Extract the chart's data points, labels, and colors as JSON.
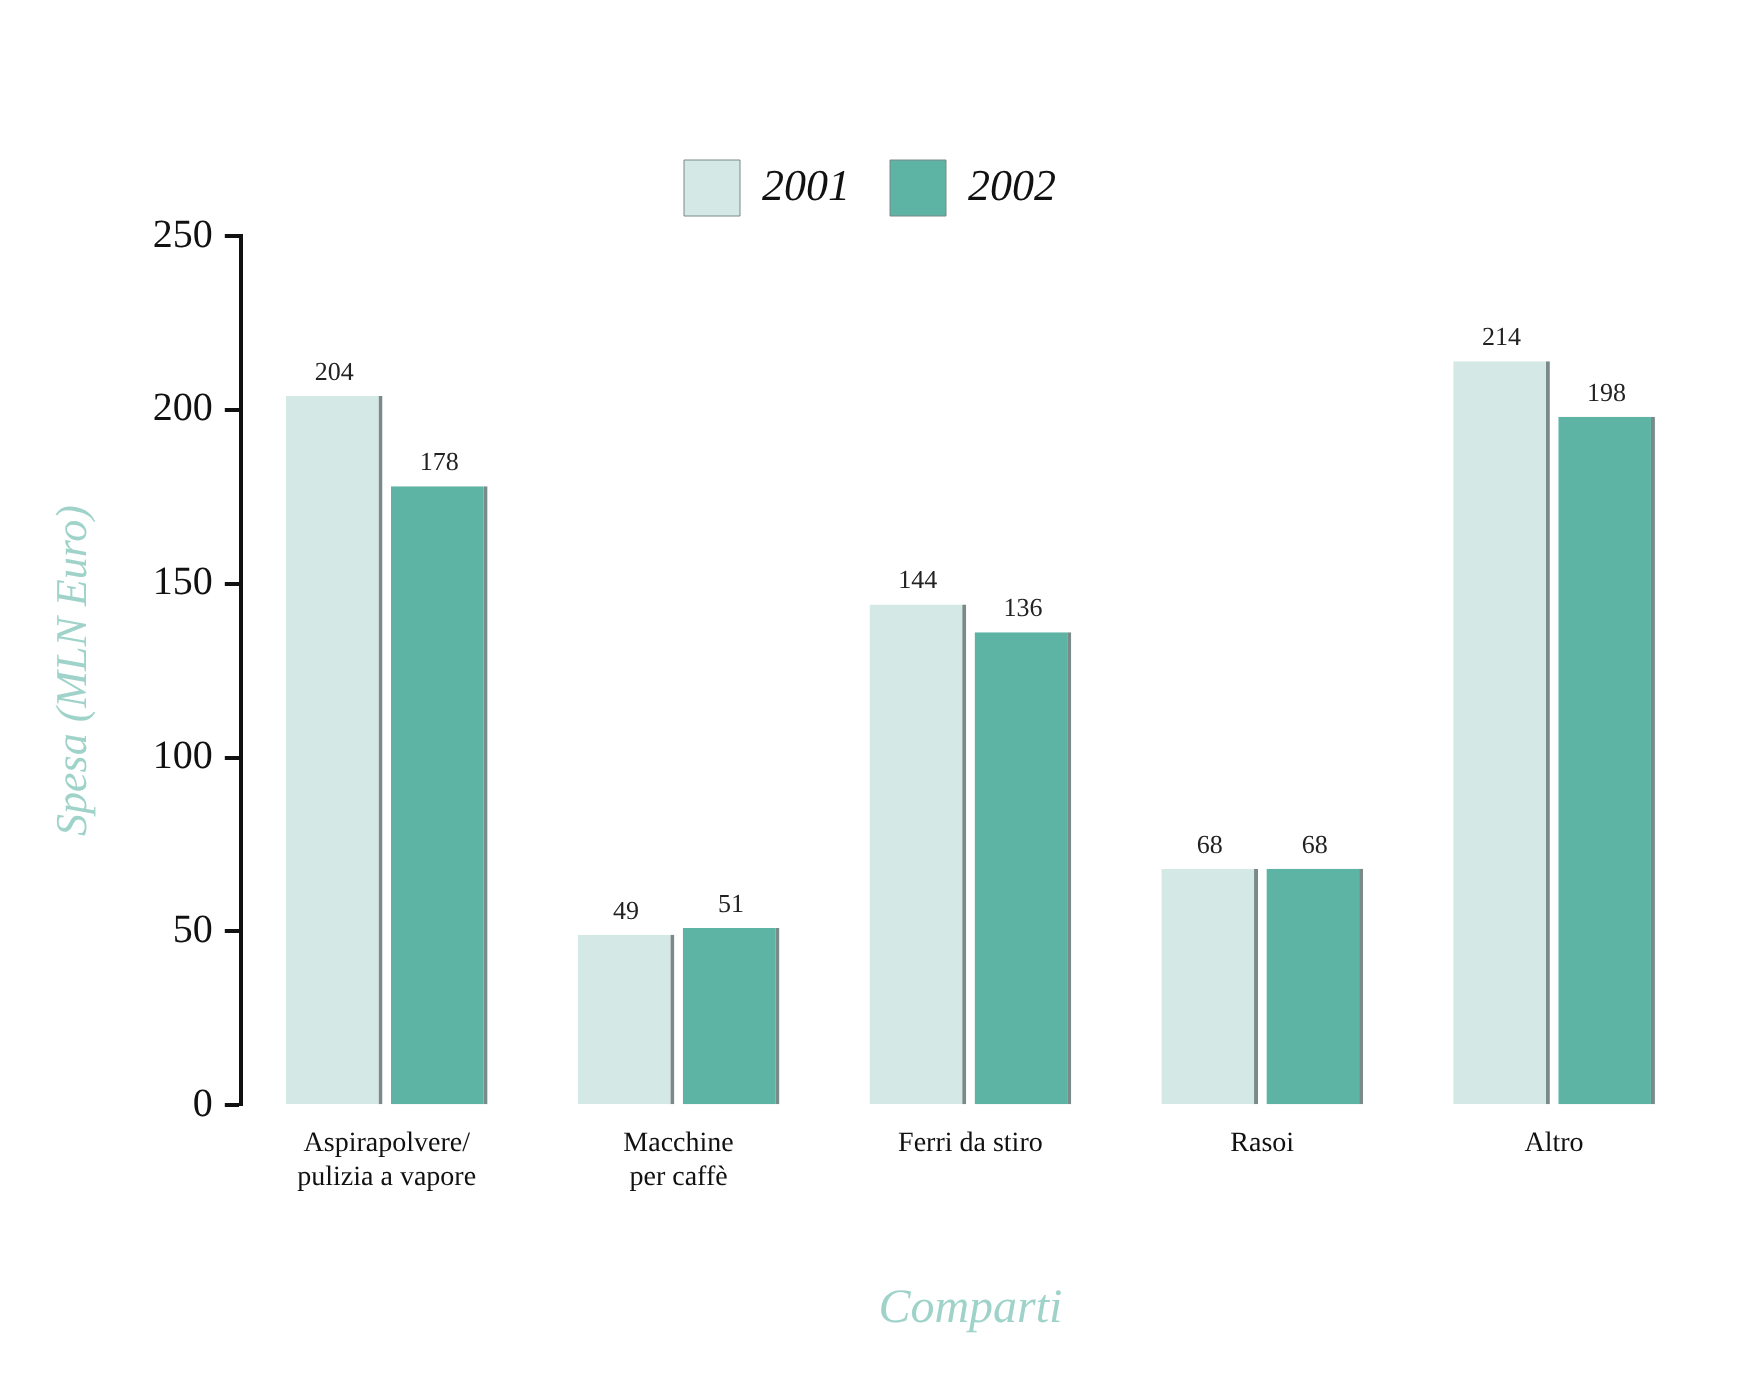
{
  "chart_data": {
    "type": "bar",
    "xlabel": "Comparti",
    "ylabel": "Spesa (MLN Euro)",
    "categories": [
      "Aspirapolvere/\npulizia a vapore",
      "Macchine\nper caffè",
      "Ferri da stiro",
      "Rasoi",
      "Altro"
    ],
    "series": [
      {
        "name": "2001",
        "color": "#d4e9e5",
        "values": [
          204,
          49,
          144,
          68,
          214
        ]
      },
      {
        "name": "2002",
        "color": "#5db3a4",
        "values": [
          178,
          51,
          136,
          68,
          198
        ]
      }
    ],
    "ylim": [
      0,
      250
    ],
    "yticks": [
      0,
      50,
      100,
      150,
      200,
      250
    ],
    "grid": false,
    "legend": "top",
    "data_labels": true
  }
}
